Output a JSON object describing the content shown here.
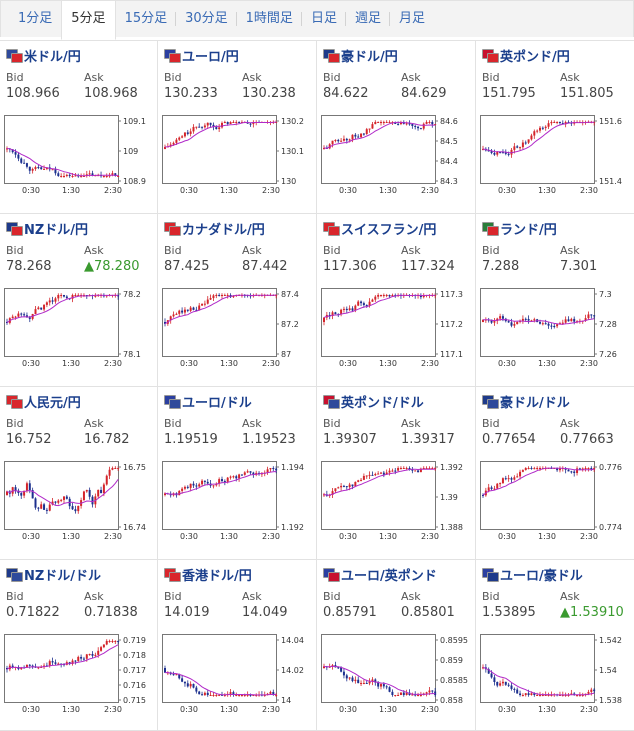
{
  "tabs": [
    {
      "label": "1分足",
      "active": false
    },
    {
      "label": "5分足",
      "active": true
    },
    {
      "label": "15分足",
      "active": false
    },
    {
      "label": "30分足",
      "active": false
    },
    {
      "label": "1時間足",
      "active": false
    },
    {
      "label": "日足",
      "active": false
    },
    {
      "label": "週足",
      "active": false
    },
    {
      "label": "月足",
      "active": false
    }
  ],
  "labels": {
    "bid": "Bid",
    "ask": "Ask"
  },
  "x_ticks": [
    "0:30",
    "1:30",
    "2:30"
  ],
  "colors": {
    "up": "#d4242a",
    "down": "#1c2f8e",
    "ma": "#b12ac9",
    "ask_up": "#3a9a2f",
    "title": "#1b3f8c"
  },
  "pairs": [
    {
      "name": "米ドル/円",
      "flag1": "#2f4a9b",
      "flag2": "#d9262c",
      "bid": "108.966",
      "ask": "108.968",
      "ask_up": false,
      "yticks": [
        "109.1",
        "109",
        "108.9"
      ],
      "trend": "down"
    },
    {
      "name": "ユーロ/円",
      "flag1": "#2b3fa0",
      "flag2": "#d9262c",
      "bid": "130.233",
      "ask": "130.238",
      "ask_up": false,
      "yticks": [
        "130.2",
        "130.1",
        "130"
      ],
      "trend": "up"
    },
    {
      "name": "豪ドル/円",
      "flag1": "#1e3a8a",
      "flag2": "#d9262c",
      "bid": "84.622",
      "ask": "84.629",
      "ask_up": false,
      "yticks": [
        "84.6",
        "84.5",
        "84.4",
        "84.3"
      ],
      "trend": "up"
    },
    {
      "name": "英ポンド/円",
      "flag1": "#c8102e",
      "flag2": "#d9262c",
      "bid": "151.795",
      "ask": "151.805",
      "ask_up": false,
      "yticks": [
        "151.6",
        "151.4"
      ],
      "trend": "up"
    },
    {
      "name": "NZドル/円",
      "flag1": "#1e3a8a",
      "flag2": "#d9262c",
      "bid": "78.268",
      "ask": "▲78.280",
      "ask_up": true,
      "yticks": [
        "78.2",
        "78.1"
      ],
      "trend": "up"
    },
    {
      "name": "カナダドル/円",
      "flag1": "#d9262c",
      "flag2": "#d9262c",
      "bid": "87.425",
      "ask": "87.442",
      "ask_up": false,
      "yticks": [
        "87.4",
        "87.2",
        "87"
      ],
      "trend": "up"
    },
    {
      "name": "スイスフラン/円",
      "flag1": "#d9262c",
      "flag2": "#d9262c",
      "bid": "117.306",
      "ask": "117.324",
      "ask_up": false,
      "yticks": [
        "117.3",
        "117.2",
        "117.1"
      ],
      "trend": "up"
    },
    {
      "name": "ランド/円",
      "flag1": "#2a7d3a",
      "flag2": "#d9262c",
      "bid": "7.288",
      "ask": "7.301",
      "ask_up": false,
      "yticks": [
        "7.3",
        "7.28",
        "7.26"
      ],
      "trend": "flat"
    },
    {
      "name": "人民元/円",
      "flag1": "#d9262c",
      "flag2": "#d9262c",
      "bid": "16.752",
      "ask": "16.782",
      "ask_up": false,
      "yticks": [
        "16.75",
        "16.74"
      ],
      "trend": "noisy"
    },
    {
      "name": "ユーロ/ドル",
      "flag1": "#2b3fa0",
      "flag2": "#2f4a9b",
      "bid": "1.19519",
      "ask": "1.19523",
      "ask_up": false,
      "yticks": [
        "1.194",
        "1.192"
      ],
      "trend": "up"
    },
    {
      "name": "英ポンド/ドル",
      "flag1": "#c8102e",
      "flag2": "#2f4a9b",
      "bid": "1.39307",
      "ask": "1.39317",
      "ask_up": false,
      "yticks": [
        "1.392",
        "1.39",
        "1.388"
      ],
      "trend": "up"
    },
    {
      "name": "豪ドル/ドル",
      "flag1": "#1e3a8a",
      "flag2": "#2f4a9b",
      "bid": "0.77654",
      "ask": "0.77663",
      "ask_up": false,
      "yticks": [
        "0.776",
        "0.774"
      ],
      "trend": "up"
    },
    {
      "name": "NZドル/ドル",
      "flag1": "#1e3a8a",
      "flag2": "#2f4a9b",
      "bid": "0.71822",
      "ask": "0.71838",
      "ask_up": false,
      "yticks": [
        "0.719",
        "0.718",
        "0.717",
        "0.716",
        "0.715"
      ],
      "trend": "up"
    },
    {
      "name": "香港ドル/円",
      "flag1": "#d9262c",
      "flag2": "#d9262c",
      "bid": "14.019",
      "ask": "14.049",
      "ask_up": false,
      "yticks": [
        "14.04",
        "14.02",
        "14"
      ],
      "trend": "down"
    },
    {
      "name": "ユーロ/英ポンド",
      "flag1": "#2b3fa0",
      "flag2": "#c8102e",
      "bid": "0.85791",
      "ask": "0.85801",
      "ask_up": false,
      "yticks": [
        "0.8595",
        "0.859",
        "0.8585",
        "0.858"
      ],
      "trend": "down"
    },
    {
      "name": "ユーロ/豪ドル",
      "flag1": "#2b3fa0",
      "flag2": "#1e3a8a",
      "bid": "1.53895",
      "ask": "▲1.53910",
      "ask_up": true,
      "yticks": [
        "1.542",
        "1.54",
        "1.538"
      ],
      "trend": "down"
    }
  ]
}
